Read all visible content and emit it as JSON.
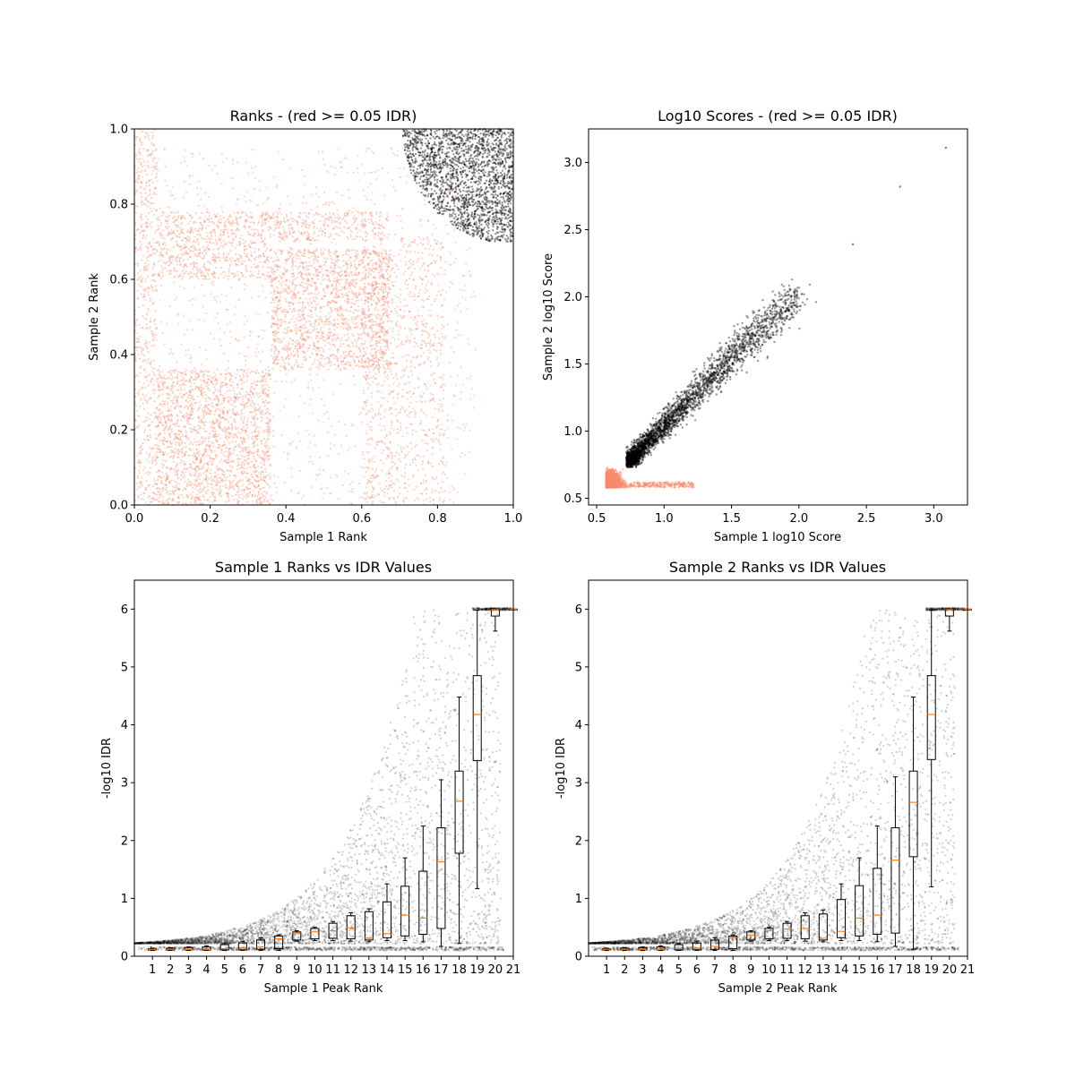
{
  "chart_data": [
    {
      "id": "ranks",
      "type": "scatter",
      "title": "Ranks - (red >= 0.05 IDR)",
      "xlabel": "Sample 1 Rank",
      "ylabel": "Sample 2 Rank",
      "xlim": [
        0,
        1
      ],
      "ylim": [
        0,
        1
      ],
      "xticks": [
        "0.0",
        "0.2",
        "0.4",
        "0.6",
        "0.8",
        "1.0"
      ],
      "yticks": [
        "0.0",
        "0.2",
        "0.4",
        "0.6",
        "0.8",
        "1.0"
      ],
      "colors": {
        "pass": "#000000",
        "fail": "#fa8c6c"
      },
      "regions": {
        "fail_blocks": [
          {
            "x": [
              0.0,
              0.06
            ],
            "y": [
              0.0,
              1.0
            ]
          },
          {
            "x": [
              0.06,
              0.36
            ],
            "y": [
              0.0,
              0.36
            ]
          },
          {
            "x": [
              0.36,
              0.67
            ],
            "y": [
              0.36,
              0.68
            ]
          },
          {
            "x": [
              0.06,
              0.36
            ],
            "y": [
              0.6,
              0.78
            ]
          },
          {
            "x": [
              0.6,
              0.68
            ],
            "y": [
              0.0,
              0.68
            ]
          },
          {
            "x": [
              0.36,
              0.67
            ],
            "y": [
              0.7,
              0.78
            ]
          },
          {
            "x": [
              0.67,
              0.82
            ],
            "y": [
              0.0,
              0.72
            ]
          }
        ],
        "pass_cluster": {
          "x": [
            0.7,
            1.0
          ],
          "y": [
            0.7,
            1.0
          ]
        }
      }
    },
    {
      "id": "scores",
      "type": "scatter",
      "title": "Log10 Scores - (red >= 0.05 IDR)",
      "xlabel": "Sample 1 log10 Score",
      "ylabel": "Sample 2 log10 Score",
      "xlim": [
        0.44,
        3.25
      ],
      "ylim": [
        0.45,
        3.25
      ],
      "xticks": [
        0.5,
        1.0,
        1.5,
        2.0,
        2.5,
        3.0
      ],
      "yticks": [
        0.5,
        1.0,
        1.5,
        2.0,
        2.5,
        3.0
      ],
      "xtick_labels": [
        "0.5",
        "1.0",
        "1.5",
        "2.0",
        "2.5",
        "3.0"
      ],
      "ytick_labels": [
        "0.5",
        "1.0",
        "1.5",
        "2.0",
        "2.5",
        "3.0"
      ],
      "colors": {
        "pass": "#000000",
        "fail": "#fa8c6c"
      },
      "outliers": [
        {
          "x": 3.09,
          "y": 3.11
        },
        {
          "x": 2.75,
          "y": 2.82
        },
        {
          "x": 2.4,
          "y": 2.39
        }
      ]
    },
    {
      "id": "s1idr",
      "type": "box",
      "title": "Sample 1 Ranks vs IDR Values",
      "xlabel": "Sample 1 Peak Rank",
      "ylabel": "-log10 IDR",
      "xlim": [
        0,
        21
      ],
      "ylim": [
        0,
        6.5
      ],
      "xticks": [
        "1",
        "2",
        "3",
        "4",
        "5",
        "6",
        "7",
        "8",
        "9",
        "10",
        "11",
        "12",
        "13",
        "14",
        "15",
        "16",
        "17",
        "18",
        "19",
        "20",
        "21"
      ],
      "yticks": [
        "0",
        "1",
        "2",
        "3",
        "4",
        "5",
        "6"
      ],
      "median_color": "#ff7f0e",
      "boxes": [
        {
          "q1": 0.11,
          "median": 0.12,
          "q3": 0.13,
          "wlo": 0.1,
          "whi": 0.14
        },
        {
          "q1": 0.11,
          "median": 0.12,
          "q3": 0.14,
          "wlo": 0.1,
          "whi": 0.15
        },
        {
          "q1": 0.11,
          "median": 0.12,
          "q3": 0.15,
          "wlo": 0.1,
          "whi": 0.16
        },
        {
          "q1": 0.11,
          "median": 0.12,
          "q3": 0.16,
          "wlo": 0.1,
          "whi": 0.18
        },
        {
          "q1": 0.11,
          "median": 0.13,
          "q3": 0.2,
          "wlo": 0.1,
          "whi": 0.22
        },
        {
          "q1": 0.11,
          "median": 0.14,
          "q3": 0.23,
          "wlo": 0.1,
          "whi": 0.26
        },
        {
          "q1": 0.12,
          "median": 0.16,
          "q3": 0.28,
          "wlo": 0.1,
          "whi": 0.32
        },
        {
          "q1": 0.13,
          "median": 0.3,
          "q3": 0.35,
          "wlo": 0.1,
          "whi": 0.37
        },
        {
          "q1": 0.28,
          "median": 0.39,
          "q3": 0.42,
          "wlo": 0.26,
          "whi": 0.44
        },
        {
          "q1": 0.3,
          "median": 0.42,
          "q3": 0.48,
          "wlo": 0.27,
          "whi": 0.5
        },
        {
          "q1": 0.31,
          "median": 0.44,
          "q3": 0.57,
          "wlo": 0.27,
          "whi": 0.6
        },
        {
          "q1": 0.3,
          "median": 0.49,
          "q3": 0.7,
          "wlo": 0.26,
          "whi": 0.75
        },
        {
          "q1": 0.28,
          "median": 0.31,
          "q3": 0.77,
          "wlo": 0.25,
          "whi": 0.82
        },
        {
          "q1": 0.32,
          "median": 0.39,
          "q3": 0.94,
          "wlo": 0.27,
          "whi": 1.25
        },
        {
          "q1": 0.35,
          "median": 0.71,
          "q3": 1.21,
          "wlo": 0.27,
          "whi": 1.7
        },
        {
          "q1": 0.38,
          "median": 0.66,
          "q3": 1.47,
          "wlo": 0.25,
          "whi": 2.25
        },
        {
          "q1": 0.48,
          "median": 1.63,
          "q3": 2.22,
          "wlo": 0.17,
          "whi": 3.05
        },
        {
          "q1": 1.78,
          "median": 2.68,
          "q3": 3.2,
          "wlo": 0.22,
          "whi": 4.48
        },
        {
          "q1": 3.38,
          "median": 4.18,
          "q3": 4.85,
          "wlo": 1.17,
          "whi": 5.98
        },
        {
          "q1": 5.88,
          "median": 5.99,
          "q3": 6.0,
          "wlo": 5.62,
          "whi": 6.0
        },
        {
          "q1": 6.0,
          "median": 6.0,
          "q3": 6.0,
          "wlo": 6.0,
          "whi": 6.0
        }
      ]
    },
    {
      "id": "s2idr",
      "type": "box",
      "title": "Sample 2 Ranks vs IDR Values",
      "xlabel": "Sample 2 Peak Rank",
      "ylabel": "-log10 IDR",
      "xlim": [
        0,
        21
      ],
      "ylim": [
        0,
        6.5
      ],
      "xticks": [
        "1",
        "2",
        "3",
        "4",
        "5",
        "6",
        "7",
        "8",
        "9",
        "10",
        "11",
        "12",
        "13",
        "14",
        "15",
        "16",
        "17",
        "18",
        "19",
        "20",
        "21"
      ],
      "yticks": [
        "0",
        "1",
        "2",
        "3",
        "4",
        "5",
        "6"
      ],
      "median_color": "#ff7f0e",
      "boxes": [
        {
          "q1": 0.11,
          "median": 0.12,
          "q3": 0.13,
          "wlo": 0.1,
          "whi": 0.14
        },
        {
          "q1": 0.11,
          "median": 0.12,
          "q3": 0.14,
          "wlo": 0.1,
          "whi": 0.15
        },
        {
          "q1": 0.11,
          "median": 0.12,
          "q3": 0.15,
          "wlo": 0.1,
          "whi": 0.16
        },
        {
          "q1": 0.11,
          "median": 0.12,
          "q3": 0.16,
          "wlo": 0.1,
          "whi": 0.18
        },
        {
          "q1": 0.11,
          "median": 0.13,
          "q3": 0.2,
          "wlo": 0.1,
          "whi": 0.22
        },
        {
          "q1": 0.11,
          "median": 0.14,
          "q3": 0.23,
          "wlo": 0.1,
          "whi": 0.26
        },
        {
          "q1": 0.12,
          "median": 0.17,
          "q3": 0.28,
          "wlo": 0.1,
          "whi": 0.32
        },
        {
          "q1": 0.13,
          "median": 0.32,
          "q3": 0.35,
          "wlo": 0.1,
          "whi": 0.37
        },
        {
          "q1": 0.28,
          "median": 0.36,
          "q3": 0.42,
          "wlo": 0.26,
          "whi": 0.44
        },
        {
          "q1": 0.3,
          "median": 0.44,
          "q3": 0.48,
          "wlo": 0.27,
          "whi": 0.5
        },
        {
          "q1": 0.31,
          "median": 0.47,
          "q3": 0.57,
          "wlo": 0.27,
          "whi": 0.6
        },
        {
          "q1": 0.3,
          "median": 0.48,
          "q3": 0.7,
          "wlo": 0.26,
          "whi": 0.75
        },
        {
          "q1": 0.28,
          "median": 0.31,
          "q3": 0.73,
          "wlo": 0.25,
          "whi": 0.8
        },
        {
          "q1": 0.32,
          "median": 0.43,
          "q3": 0.98,
          "wlo": 0.27,
          "whi": 1.25
        },
        {
          "q1": 0.35,
          "median": 0.66,
          "q3": 1.22,
          "wlo": 0.27,
          "whi": 1.7
        },
        {
          "q1": 0.38,
          "median": 0.71,
          "q3": 1.52,
          "wlo": 0.25,
          "whi": 2.25
        },
        {
          "q1": 0.4,
          "median": 1.66,
          "q3": 2.22,
          "wlo": 0.17,
          "whi": 3.1
        },
        {
          "q1": 1.72,
          "median": 2.66,
          "q3": 3.2,
          "wlo": 0.12,
          "whi": 4.48
        },
        {
          "q1": 3.4,
          "median": 4.18,
          "q3": 4.85,
          "wlo": 1.2,
          "whi": 5.98
        },
        {
          "q1": 5.88,
          "median": 5.99,
          "q3": 6.0,
          "wlo": 5.62,
          "whi": 6.0
        },
        {
          "q1": 6.0,
          "median": 6.0,
          "q3": 6.0,
          "wlo": 6.0,
          "whi": 6.0
        }
      ]
    }
  ]
}
